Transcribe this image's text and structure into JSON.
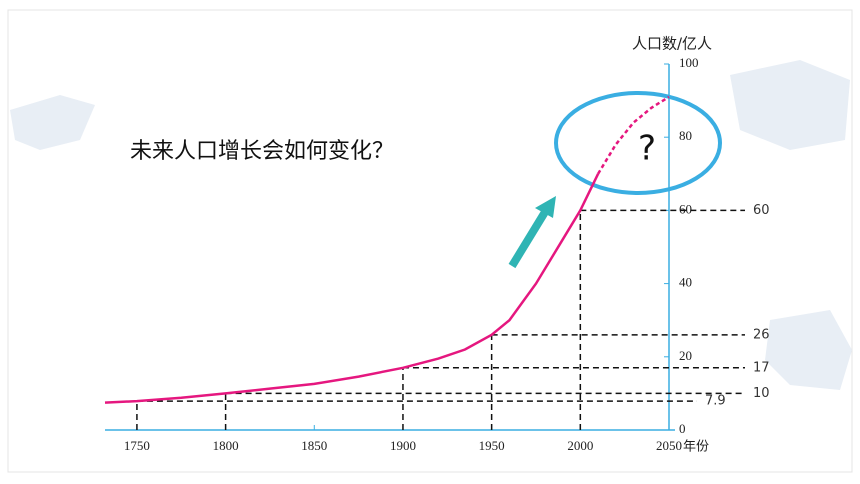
{
  "chart_data": {
    "type": "line",
    "title": "未来人口增长会如何变化？",
    "y_label": "人口数/亿人",
    "x_label": "年份",
    "callout": "?",
    "xlim": [
      1732,
      2050
    ],
    "ylim": [
      0,
      100
    ],
    "xticks": [
      1750,
      1800,
      1850,
      1900,
      1950,
      2000,
      2050
    ],
    "yticks": [
      0,
      20,
      40,
      60,
      80,
      100
    ],
    "series": [
      {
        "color": "#e5177f",
        "dashed": false,
        "x": [
          1732,
          1750,
          1775,
          1800,
          1825,
          1850,
          1875,
          1900,
          1920,
          1935,
          1950,
          1960,
          1975,
          1990,
          2000,
          2010
        ],
        "values": [
          7.5,
          7.9,
          8.8,
          10,
          11.3,
          12.6,
          14.6,
          17,
          19.5,
          22,
          26,
          30,
          40,
          52,
          60,
          70
        ]
      },
      {
        "color": "#e5177f",
        "dashed": true,
        "x": [
          2010,
          2020,
          2030,
          2040,
          2050
        ],
        "values": [
          70,
          78,
          84,
          88,
          91
        ]
      }
    ],
    "references": [
      {
        "x": 1750,
        "value": 7.9
      },
      {
        "x": 1800,
        "value": 10
      },
      {
        "x": 1900,
        "value": 17
      },
      {
        "x": 1950,
        "value": 26
      },
      {
        "x": 2000,
        "value": 60
      }
    ]
  }
}
